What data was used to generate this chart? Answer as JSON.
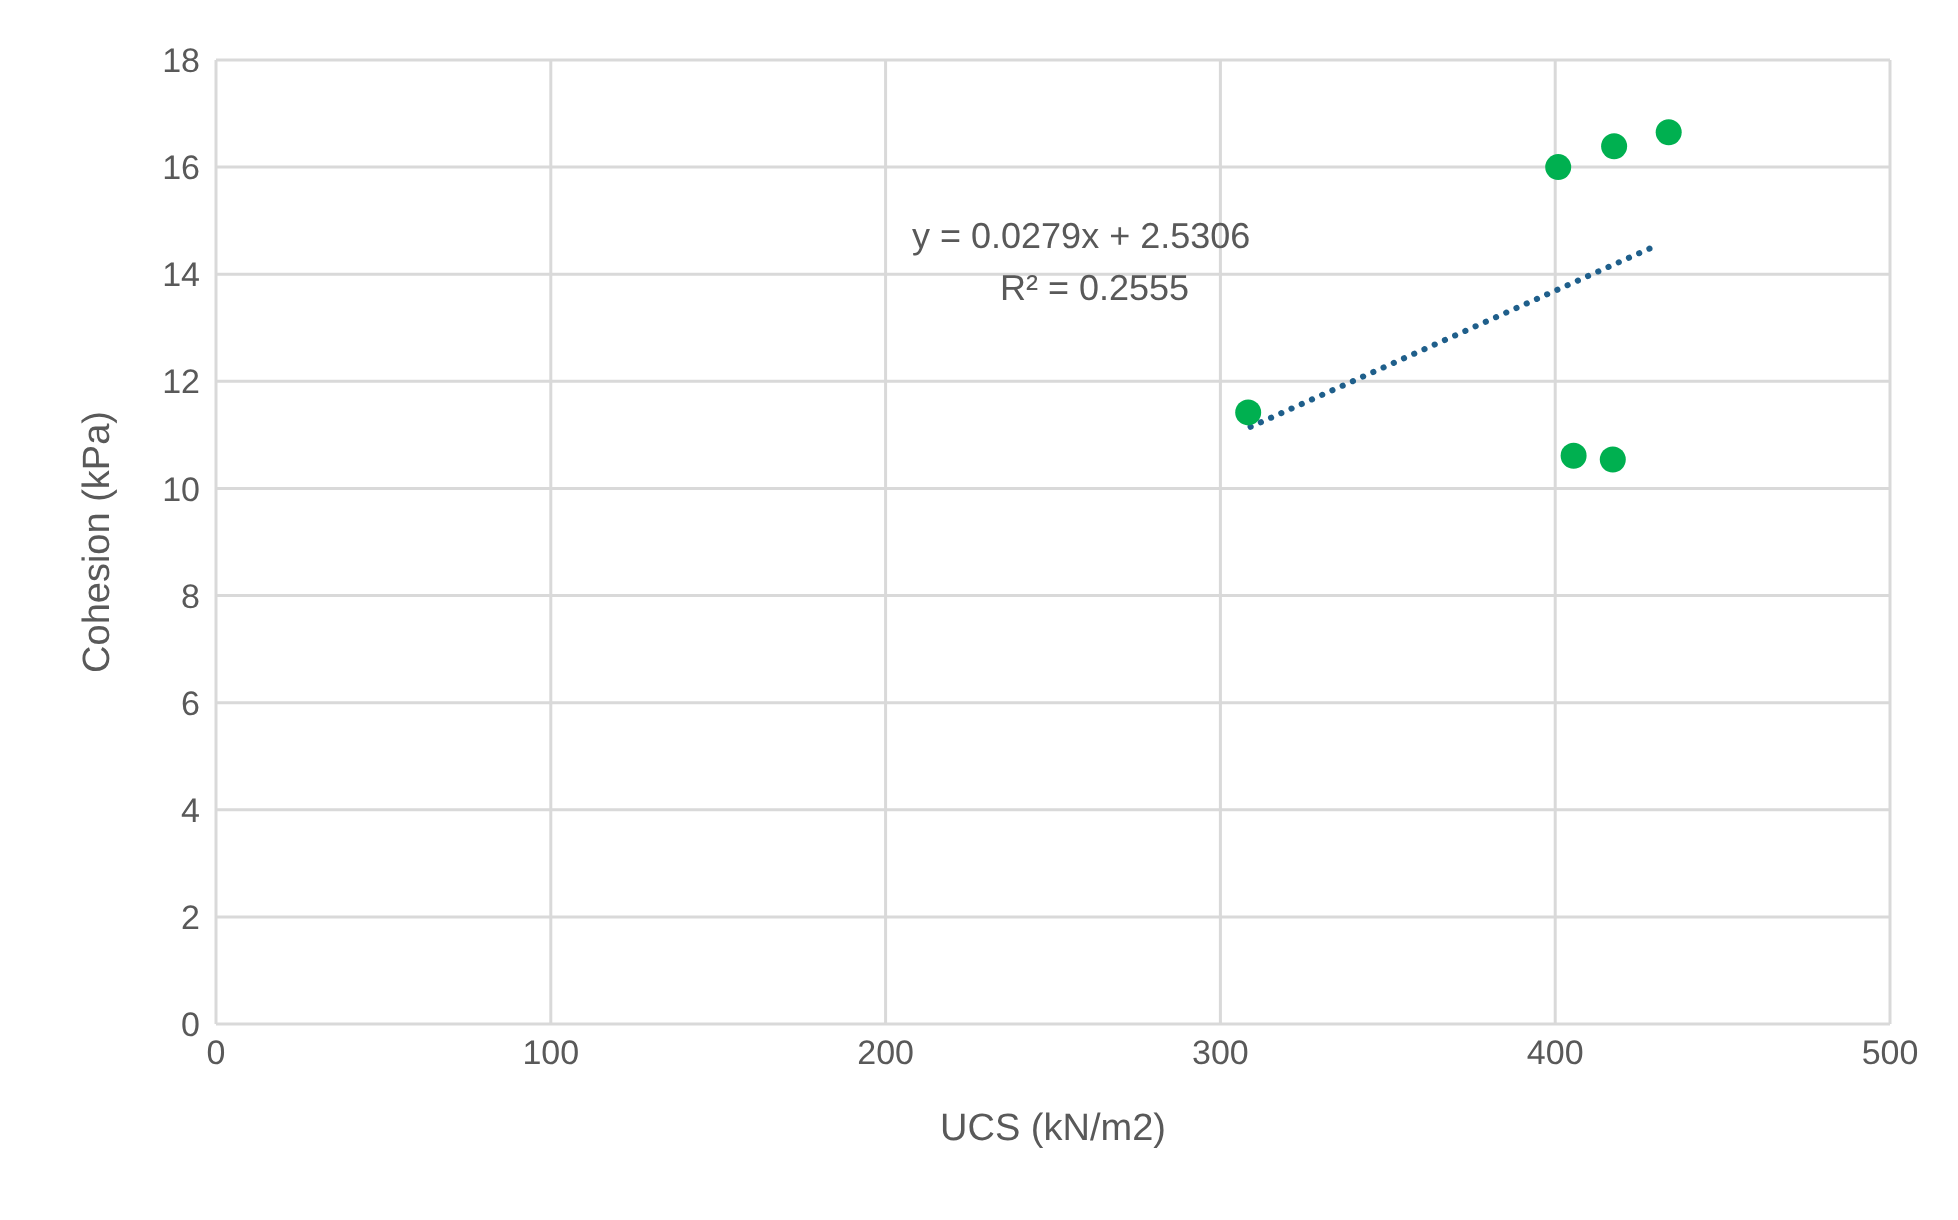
{
  "chart_data": {
    "type": "scatter",
    "xlabel": "UCS (kN/m2)",
    "ylabel": "Cohesion (kPa)",
    "xlim": [
      0,
      500
    ],
    "xticks": [
      0,
      100,
      200,
      300,
      400,
      500
    ],
    "ylim": [
      0,
      18
    ],
    "yticks": [
      0,
      2,
      4,
      6,
      8,
      10,
      12,
      14,
      16,
      18
    ],
    "grid": true,
    "marker": "circle",
    "annotations": [
      "y = 0.0279x + 2.5306",
      "R² = 0.2555"
    ],
    "series": [
      {
        "color": "#00b050",
        "x": [
          308.3,
          400.9,
          417.6,
          433.9,
          405.5,
          417.2
        ],
        "values": [
          11.42,
          16.0,
          16.39,
          16.65,
          10.61,
          10.54
        ]
      },
      {
        "type": "line",
        "color": "#1f5f8b",
        "line_style": "dotted",
        "marker": "none",
        "x": [
          309,
          430
        ],
        "values": [
          11.15,
          14.53
        ]
      }
    ]
  }
}
